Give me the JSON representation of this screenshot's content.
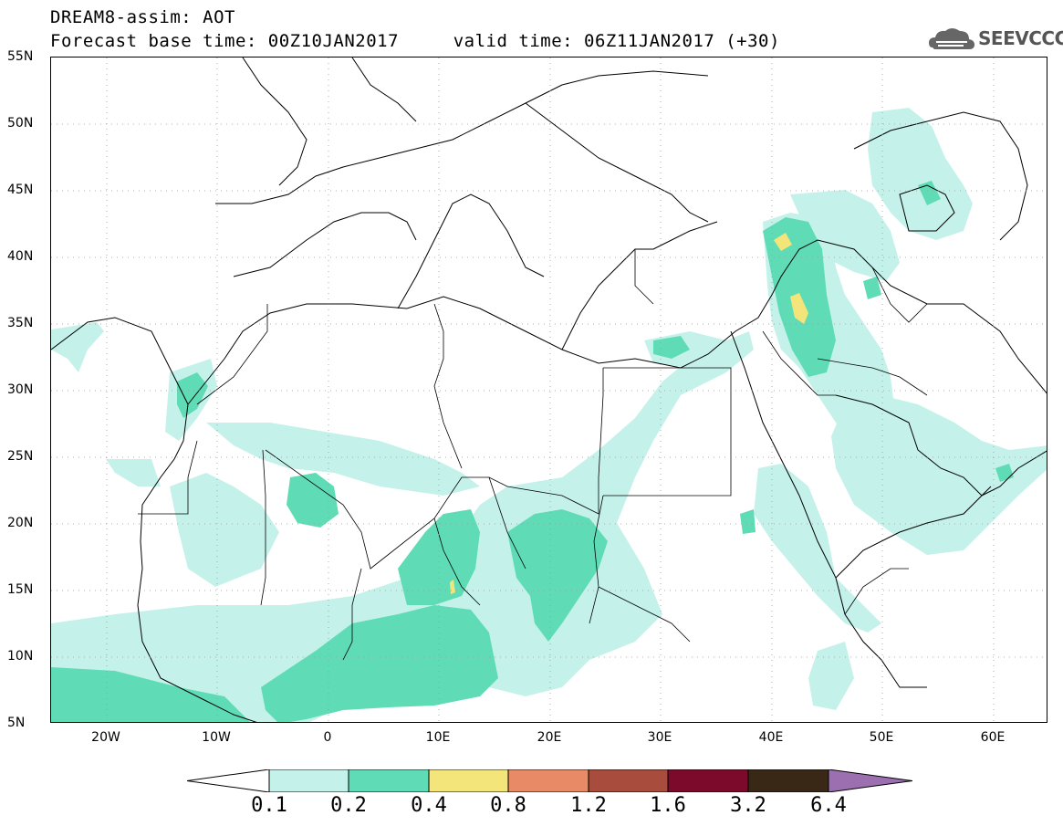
{
  "header": {
    "title_line1": "DREAM8-assim: AOT",
    "title_line2": "Forecast base time: 00Z10JAN2017     valid time: 06Z11JAN2017 (+30)"
  },
  "logo": {
    "text": "SEEVCCC",
    "icon": "cloud-logo-icon",
    "color": "#555555"
  },
  "map": {
    "lat_labels": [
      "55N",
      "50N",
      "45N",
      "40N",
      "35N",
      "30N",
      "25N",
      "20N",
      "15N",
      "10N",
      "5N"
    ],
    "lon_labels": [
      "20W",
      "10W",
      "0",
      "10E",
      "20E",
      "30E",
      "40E",
      "50E",
      "60E"
    ],
    "lat_range": [
      5,
      55
    ],
    "lon_range": [
      -25,
      65
    ],
    "grid": true
  },
  "colorbar": {
    "labels": [
      "0.1",
      "0.2",
      "0.4",
      "0.8",
      "1.2",
      "1.6",
      "3.2",
      "6.4"
    ],
    "colors": [
      "#ffffff",
      "#c4f2ea",
      "#5fdcb5",
      "#f4e57a",
      "#e88a65",
      "#a84c3e",
      "#7c0a2a",
      "#3a2816",
      "#9c6fb0"
    ]
  }
}
